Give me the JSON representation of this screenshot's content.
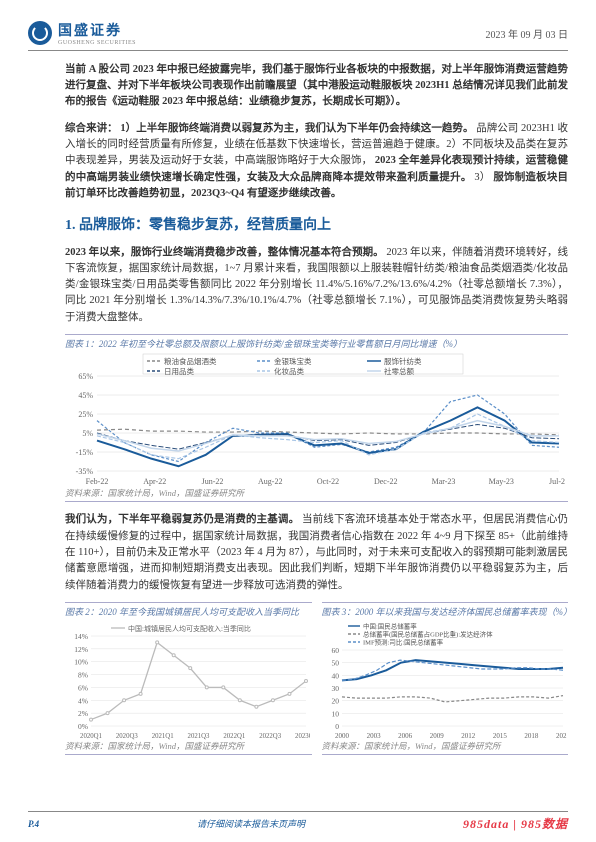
{
  "header": {
    "company_name": "国盛证券",
    "company_sub": "GUOSHENG SECURITIES",
    "date": "2023 年 09 月 03 日"
  },
  "paragraphs": {
    "p1_bold_lead": "当前 A 股公司 2023 年中报已经披露完毕，我们基于服饰行业各板块的中报数据，对上半年服饰消费运营趋势进行复盘、并对下半年板块公司表现作出前瞻展望（其中港股运动鞋服板块 2023H1 总结情况详见我们此前发布的报告《运动鞋服 2023 年中报总结：业绩稳步复苏，长期成长可期》）。",
    "p2_pre": "综合来讲：",
    "p2_body": "1）上半年服饰终端消费以弱复苏为主，我们认为下半年仍会持续这一趋势。",
    "p2_tail": "品牌公司 2023H1 收入增长的同时经营质量有所修复，业绩在低基数下快速增长，营运普遍趋于健康。2）不同板块及品类在复苏中表现差异，男装及运动好于女装，中高端服饰略好于大众服饰，",
    "p2_bold2": "2023 全年差异化表现预计持续，运营稳健的中高端男装业绩快速增长确定性强，女装及大众品牌商降本提效带来盈利质量提升。",
    "p2_tail2": "3）",
    "p2_bold3": "服饰制造板块目前订单环比改善趋势初显，2023Q3~Q4 有望逐步继续改善。",
    "section1_title": "1. 品牌服饰：零售稳步复苏，经营质量向上",
    "p3_lead": "2023 年以来，服饰行业终端消费稳步改善，整体情况基本符合预期。",
    "p3_body": "2023 年以来，伴随着消费环境转好，线下客流恢复，据国家统计局数据，1~7 月累计来看，我国限额以上服装鞋帽针纺类/粮油食品类烟酒类/化妆品类/金银珠宝类/日用品类零售额同比 2022 年分别增长 11.4%/5.16%/7.2%/13.6%/4.2%（社零总额增长 7.3%），同比 2021 年分别增长 1.3%/14.3%/7.3%/10.1%/4.7%（社零总额增长 7.1%），可见服饰品类消费恢复势头略弱于消费大盘整体。",
    "p4_lead": "我们认为，下半年平稳弱复苏仍是消费的主基调。",
    "p4_body": "当前线下客流环境基本处于常态水平，但居民消费信心仍在持续缓慢修复的过程中，据国家统计局数据，我国消费者信心指数在 2022 年 4~9 月下探至 85+（此前维持在 110+），目前仍未及正常水平（2023 年 4 月为 87），与此同时，对于未来可支配收入的弱预期可能刺激居民储蓄意愿增强，进而抑制短期消费支出表现。因此我们判断，短期下半年服饰消费仍以平稳弱复苏为主，后续伴随着消费力的缓慢恢复有望进一步释放可选消费的弹性。"
  },
  "chart1": {
    "caption": "图表 1：2022 年初至今社零总额及限额以上服饰针纺类/金银珠宝类等行业零售额日月同比增速（%）",
    "source": "资料来源：国家统计局，Wind，国盛证券研究所",
    "type": "line",
    "x_labels": [
      "Feb-22",
      "Apr-22",
      "Jun-22",
      "Aug-22",
      "Oct-22",
      "Dec-22",
      "Mar-23",
      "May-23",
      "Jul-23"
    ],
    "y_ticks": [
      -35,
      -15,
      5,
      25,
      45,
      65
    ],
    "background_color": "#ffffff",
    "grid_color": "#d8d8d8",
    "series": [
      {
        "name": "粮油食品烟酒类",
        "color": "#888888",
        "dash": "4 3",
        "width": 1.2,
        "values": [
          8,
          9,
          7,
          7,
          6,
          6,
          7,
          6,
          5,
          4,
          5,
          4,
          4,
          5,
          5,
          4,
          4,
          3
        ]
      },
      {
        "name": "金银珠宝类",
        "color": "#5b8fc9",
        "dash": "3 2",
        "width": 1.2,
        "values": [
          18,
          -5,
          -18,
          -25,
          -5,
          10,
          5,
          5,
          -10,
          -7,
          -15,
          -10,
          5,
          38,
          45,
          25,
          -8,
          -10
        ]
      },
      {
        "name": "服饰针纺类",
        "color": "#1a5b9a",
        "dash": "",
        "width": 2,
        "values": [
          -3,
          -12,
          -22,
          -30,
          -18,
          2,
          3,
          4,
          -8,
          -6,
          -16,
          -12,
          6,
          18,
          32,
          18,
          -5,
          -6
        ]
      },
      {
        "name": "日用品类",
        "color": "#2a4d7a",
        "dash": "5 2",
        "width": 1,
        "values": [
          5,
          -3,
          -8,
          -12,
          -5,
          2,
          4,
          3,
          -3,
          -2,
          -8,
          -5,
          4,
          9,
          14,
          10,
          0,
          -1
        ]
      },
      {
        "name": "化妆品类",
        "color": "#a9c6e6",
        "dash": "4 2",
        "width": 1.2,
        "values": [
          2,
          -5,
          -18,
          -22,
          -10,
          3,
          0,
          -2,
          -5,
          -3,
          -18,
          -12,
          5,
          10,
          25,
          12,
          -3,
          -5
        ]
      },
      {
        "name": "社零总额",
        "color": "#c2d5ea",
        "dash": "",
        "width": 1.5,
        "values": [
          4,
          -3,
          -11,
          -14,
          -6,
          3,
          2,
          2,
          -2,
          -1,
          -6,
          -4,
          4,
          10,
          18,
          12,
          2,
          2
        ]
      }
    ],
    "legend": [
      {
        "label": "粮油食品烟酒类",
        "style": "dash",
        "color": "#888888"
      },
      {
        "label": "金银珠宝类",
        "style": "dash",
        "color": "#5b8fc9"
      },
      {
        "label": "服饰针纺类",
        "style": "solid",
        "color": "#1a5b9a"
      },
      {
        "label": "日用品类",
        "style": "dash",
        "color": "#2a4d7a"
      },
      {
        "label": "化妆品类",
        "style": "dash",
        "color": "#a9c6e6"
      },
      {
        "label": "社零总额",
        "style": "solid",
        "color": "#c2d5ea"
      }
    ]
  },
  "chart2": {
    "caption": "图表 2：2020 年至今我国城镇居民人均可支配收入当季同比",
    "source": "资料来源：国家统计局，Wind，国盛证券研究所",
    "type": "line",
    "x_labels": [
      "2020Q1",
      "2020Q3",
      "2021Q1",
      "2021Q3",
      "2022Q1",
      "2022Q3",
      "2023Q1"
    ],
    "y_ticks": [
      0,
      2,
      4,
      6,
      8,
      10,
      12,
      14
    ],
    "y_suffix": "%",
    "series": [
      {
        "name": "中国:城镇居民人均可支配收入:当季同比",
        "color": "#bbbbbb",
        "width": 1.3,
        "values": [
          1,
          2,
          4,
          5,
          13,
          11,
          9,
          6,
          6,
          4,
          3,
          4,
          5,
          7
        ]
      }
    ],
    "legend_label": "中国:城镇居民人均可支配收入:当季同比"
  },
  "chart3": {
    "caption": "图表 3：2000 年以来我国与发达经济体国民总储蓄率表现（%）",
    "source": "资料来源：国家统计局，Wind，国盛证券研究所",
    "type": "line",
    "x_labels": [
      "2000",
      "2003",
      "2006",
      "2009",
      "2012",
      "2015",
      "2018",
      "2021"
    ],
    "y_ticks": [
      0,
      10,
      20,
      30,
      40,
      50,
      60
    ],
    "series": [
      {
        "name": "中国:国民总储蓄率",
        "color": "#1a5b9a",
        "width": 2,
        "dash": "",
        "values": [
          36,
          37,
          40,
          44,
          50,
          52,
          51,
          50,
          49,
          48,
          47,
          46,
          45,
          45,
          45,
          46
        ]
      },
      {
        "name": "总储蓄率(国民总储蓄占GDP比重):发达经济体",
        "color": "#888888",
        "width": 1.2,
        "dash": "3 2",
        "values": [
          23,
          22,
          22,
          22,
          23,
          23,
          22,
          19,
          20,
          21,
          22,
          22,
          23,
          23,
          22,
          24
        ]
      },
      {
        "name": "IMF预测:司比:国民总储蓄率",
        "color": "#5b8fc9",
        "width": 1.2,
        "dash": "4 2",
        "values": [
          36,
          37,
          40,
          44,
          50,
          52,
          51,
          50,
          49,
          48,
          47,
          46,
          45,
          45,
          45,
          46,
          46,
          45,
          45,
          44
        ]
      }
    ],
    "legend": [
      {
        "label": "中国:国民总储蓄率",
        "color": "#1a5b9a",
        "style": "solid"
      },
      {
        "label": "总储蓄率(国民总储蓄占GDP比重):发达经济体",
        "color": "#888888",
        "style": "dash"
      },
      {
        "label": "IMF预测:司比:国民总储蓄率",
        "color": "#5b8fc9",
        "style": "dash"
      }
    ]
  },
  "footer": {
    "page": "P.4",
    "center": "请仔细阅读本报告末页声明",
    "right": "985data | 985数据"
  }
}
